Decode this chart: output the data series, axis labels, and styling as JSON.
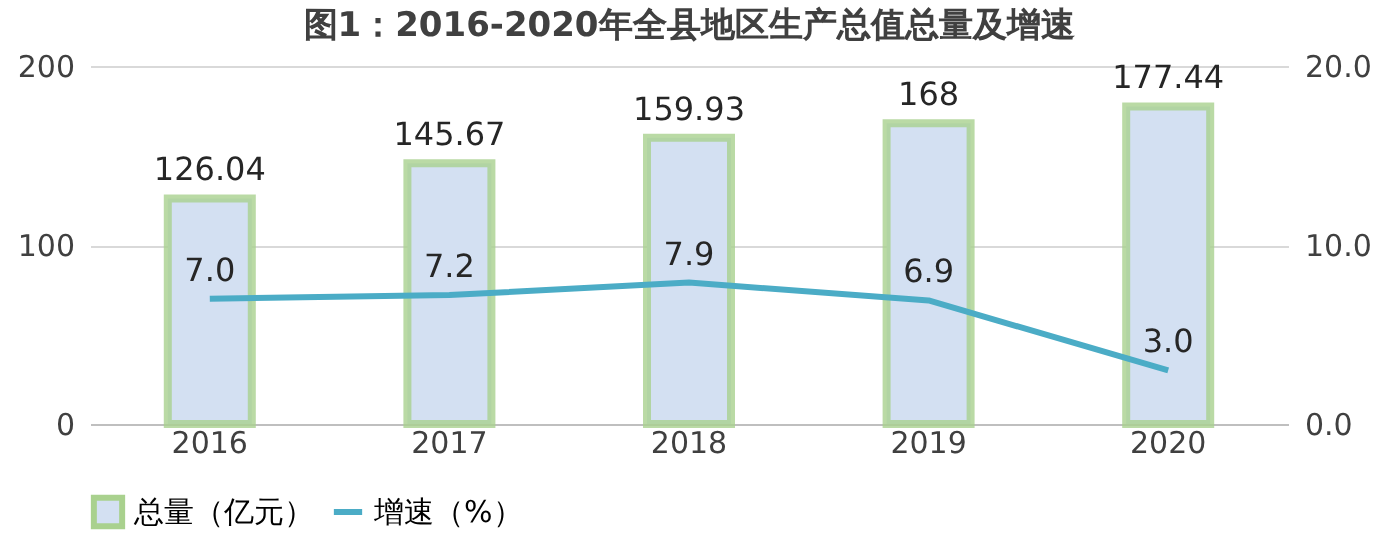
{
  "chart_data": {
    "type": "bar",
    "title": "图1：2016-2020年全县地区生产总值总量及增速",
    "categories": [
      "2016",
      "2017",
      "2018",
      "2019",
      "2020"
    ],
    "series": [
      {
        "name": "总量（亿元）",
        "color": "#d3e0f2",
        "values": [
          126.04,
          145.67,
          159.93,
          168,
          177.44
        ],
        "value_labels": [
          "126.04",
          "145.67",
          "159.93",
          "168",
          "177.44"
        ]
      },
      {
        "name": "增速（%）",
        "type": "line",
        "axis": "y2",
        "color": "#4bacc6",
        "values": [
          7.0,
          7.2,
          7.9,
          6.9,
          3.0
        ],
        "value_labels": [
          "7.0",
          "7.2",
          "7.9",
          "6.9",
          "3.0"
        ]
      }
    ],
    "ylim": [
      0,
      200
    ],
    "yticks": [
      0,
      100,
      200
    ],
    "y2lim": [
      0,
      20
    ],
    "y2ticks": [
      {
        "value": 0,
        "label": "0.0"
      },
      {
        "value": 10,
        "label": "10.0"
      },
      {
        "value": 20,
        "label": "20.0"
      }
    ],
    "grid": "y",
    "legend": "bottom"
  }
}
